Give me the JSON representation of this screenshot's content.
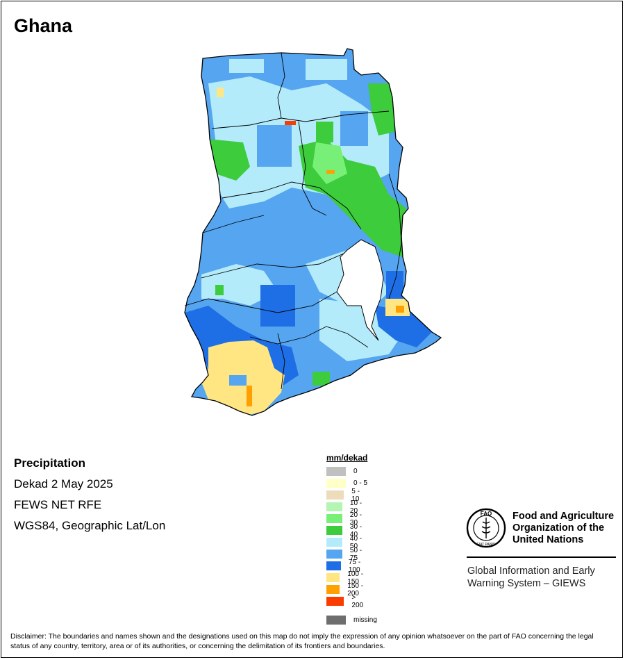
{
  "title": "Ghana",
  "info": {
    "variable": "Precipitation",
    "period": "Dekad 2 May 2025",
    "source": "FEWS NET RFE",
    "projection": "WGS84, Geographic Lat/Lon"
  },
  "legend": {
    "title": "mm/dekad",
    "items": [
      {
        "label": "0",
        "color": "#c0c0c0"
      },
      {
        "label": "0 - 5",
        "color": "#ffffc8"
      },
      {
        "label": "5 - 10",
        "color": "#ecdcb9"
      },
      {
        "label": "10 - 20",
        "color": "#b4f5b4"
      },
      {
        "label": "20 - 30",
        "color": "#78f078"
      },
      {
        "label": "30 - 40",
        "color": "#3ccc3c"
      },
      {
        "label": "40 - 50",
        "color": "#b4ebfa"
      },
      {
        "label": "50 - 75",
        "color": "#55a5f0"
      },
      {
        "label": "75 - 100",
        "color": "#1e6ee6"
      },
      {
        "label": "100 - 150",
        "color": "#ffe682"
      },
      {
        "label": "150 - 200",
        "color": "#ffa000"
      },
      {
        "label": "> 200",
        "color": "#fa3c00"
      }
    ],
    "missing": {
      "label": "missing",
      "color": "#6e6e6e"
    }
  },
  "org": {
    "name_line1": "Food and Agriculture",
    "name_line2": "Organization of the",
    "name_line3": "United Nations",
    "emblem_text": "FAO",
    "emblem_motto": "FIAT PANIS",
    "system_line1": "Global Information and Early",
    "system_line2": "Warning System – GIEWS"
  },
  "disclaimer": "Disclaimer: The boundaries and names shown and the designations used on this map do not imply the expression of any opinion whatsoever on the part of FAO concerning the legal status of any country, territory, area or of its authorities, or concerning the delimitation of its frontiers and boundaries."
}
